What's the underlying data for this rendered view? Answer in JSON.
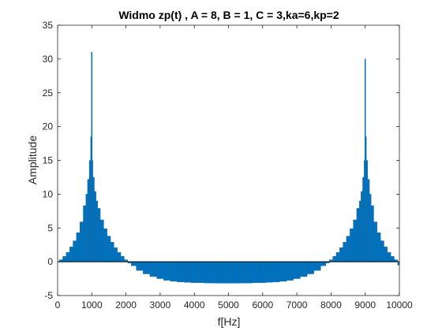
{
  "chart_data": {
    "type": "bar",
    "title": "Widmo zp(t) , A = 8, B = 1, C = 3,ka=6,kp=2",
    "xlabel": "f[Hz]",
    "ylabel": "Amplitude",
    "xlim": [
      0,
      10000
    ],
    "ylim": [
      -5,
      35
    ],
    "xticks": [
      "0",
      "1000",
      "2000",
      "3000",
      "4000",
      "5000",
      "6000",
      "7000",
      "8000",
      "9000",
      "10000"
    ],
    "yticks": [
      "-5",
      "0",
      "5",
      "10",
      "15",
      "20",
      "25",
      "30",
      "35"
    ],
    "grid": false,
    "bar_color": "#0072BD",
    "baseline_color": "#000000",
    "series": [
      {
        "x": [
          0,
          100,
          200,
          300,
          400,
          500,
          600,
          700,
          800,
          850,
          900,
          950,
          980,
          1000,
          1020,
          1050,
          1100,
          1150,
          1200,
          1300,
          1400,
          1500,
          1600,
          1700,
          1800,
          1900,
          2000,
          2100,
          2200,
          2400,
          2600,
          2800,
          3000,
          3200,
          3400,
          3600,
          3800,
          4000,
          4200,
          4400,
          4600,
          4800,
          5000,
          5200,
          5400,
          5600,
          5800,
          6000,
          6200,
          6400,
          6600,
          6800,
          7000,
          7200,
          7400,
          7600,
          7800,
          7900,
          8000,
          8100,
          8200,
          8300,
          8400,
          8500,
          8600,
          8700,
          8800,
          8850,
          8900,
          8950,
          8980,
          9000,
          9020,
          9050,
          9100,
          9150,
          9200,
          9300,
          9400,
          9500,
          9600,
          9700,
          9800,
          9900,
          10000
        ],
        "values": [
          0,
          0.3,
          0.8,
          1.4,
          2.2,
          3.1,
          4.3,
          5.9,
          8.3,
          10.0,
          12.2,
          15.0,
          18.5,
          31.0,
          15.0,
          12.5,
          10.4,
          9.0,
          7.9,
          6.2,
          4.9,
          3.8,
          2.9,
          2.1,
          1.4,
          0.8,
          0.3,
          -0.2,
          -0.6,
          -1.3,
          -1.8,
          -2.2,
          -2.5,
          -2.75,
          -2.9,
          -3.0,
          -3.05,
          -3.1,
          -3.12,
          -3.15,
          -3.17,
          -3.18,
          -3.18,
          -3.18,
          -3.17,
          -3.15,
          -3.12,
          -3.1,
          -3.05,
          -3.0,
          -2.9,
          -2.75,
          -2.5,
          -2.2,
          -1.8,
          -1.3,
          -0.6,
          -0.2,
          0.3,
          0.8,
          1.4,
          2.1,
          2.9,
          3.8,
          4.9,
          6.2,
          7.9,
          9.0,
          10.4,
          12.5,
          15.0,
          30.0,
          18.5,
          15.0,
          12.2,
          10.0,
          8.3,
          5.9,
          4.3,
          3.1,
          2.2,
          1.4,
          0.8,
          0.3,
          -0.5
        ]
      }
    ]
  }
}
